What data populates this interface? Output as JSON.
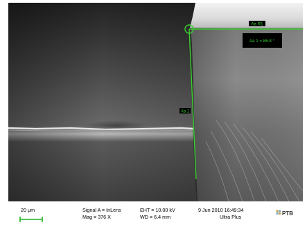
{
  "image": {
    "type": "SEM micrograph",
    "overlay_color": "#39d12e"
  },
  "measurement": {
    "label_a1": "Aa 1",
    "label_r1": "Aa R1",
    "angle_readout": "Aa 1 = 86.8 °"
  },
  "info_bar": {
    "scale_bar_label": "20 μm",
    "signal": "Signal A = InLens",
    "mag": "Mag =   376 X",
    "eht": "EHT = 10.00 kV",
    "wd": "WD =  6.4 mm",
    "date_time": "9 Jun 2010  16:49:34",
    "instrument": "Ultra Plus",
    "logo_text": "PTB"
  }
}
